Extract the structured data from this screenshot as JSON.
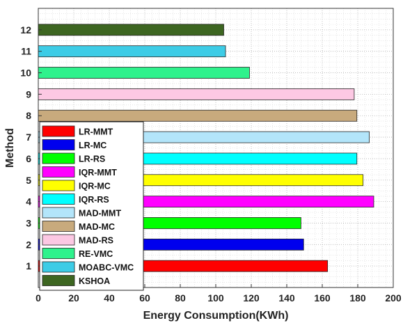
{
  "chart_data": {
    "type": "bar",
    "orientation": "horizontal",
    "title": "",
    "xlabel": "Energy Consumption(KWh)",
    "ylabel": "Method",
    "xlim": [
      0,
      200
    ],
    "ylim": [
      0,
      13
    ],
    "xticks": [
      0,
      20,
      40,
      60,
      80,
      100,
      120,
      140,
      160,
      180,
      200
    ],
    "yticks": [
      1,
      2,
      3,
      4,
      5,
      6,
      7,
      8,
      9,
      10,
      11,
      12
    ],
    "grid": true,
    "legend_position": "bottom-left",
    "series": [
      {
        "name": "LR-MMT",
        "y": 1,
        "value": 163,
        "color": "#ff0000"
      },
      {
        "name": "LR-MC",
        "y": 2,
        "value": 149.5,
        "color": "#0000ee"
      },
      {
        "name": "LR-RS",
        "y": 3,
        "value": 148,
        "color": "#00ff00"
      },
      {
        "name": "IQR-MMT",
        "y": 4,
        "value": 189,
        "color": "#ff00ff"
      },
      {
        "name": "IQR-MC",
        "y": 5,
        "value": 183,
        "color": "#ffff00"
      },
      {
        "name": "IQR-RS",
        "y": 6,
        "value": 179.5,
        "color": "#00ffff"
      },
      {
        "name": "MAD-MMT",
        "y": 7,
        "value": 186.5,
        "color": "#b3e5fa"
      },
      {
        "name": "MAD-MC",
        "y": 8,
        "value": 179.5,
        "color": "#c8aa7d"
      },
      {
        "name": "MAD-RS",
        "y": 9,
        "value": 178,
        "color": "#fcc8e3"
      },
      {
        "name": "RE-VMC",
        "y": 10,
        "value": 119,
        "color": "#2ef28c"
      },
      {
        "name": "MOABC-VMC",
        "y": 11,
        "value": 105.5,
        "color": "#3dcce6"
      },
      {
        "name": "KSHOA",
        "y": 12,
        "value": 104.5,
        "color": "#3d6621"
      }
    ]
  }
}
